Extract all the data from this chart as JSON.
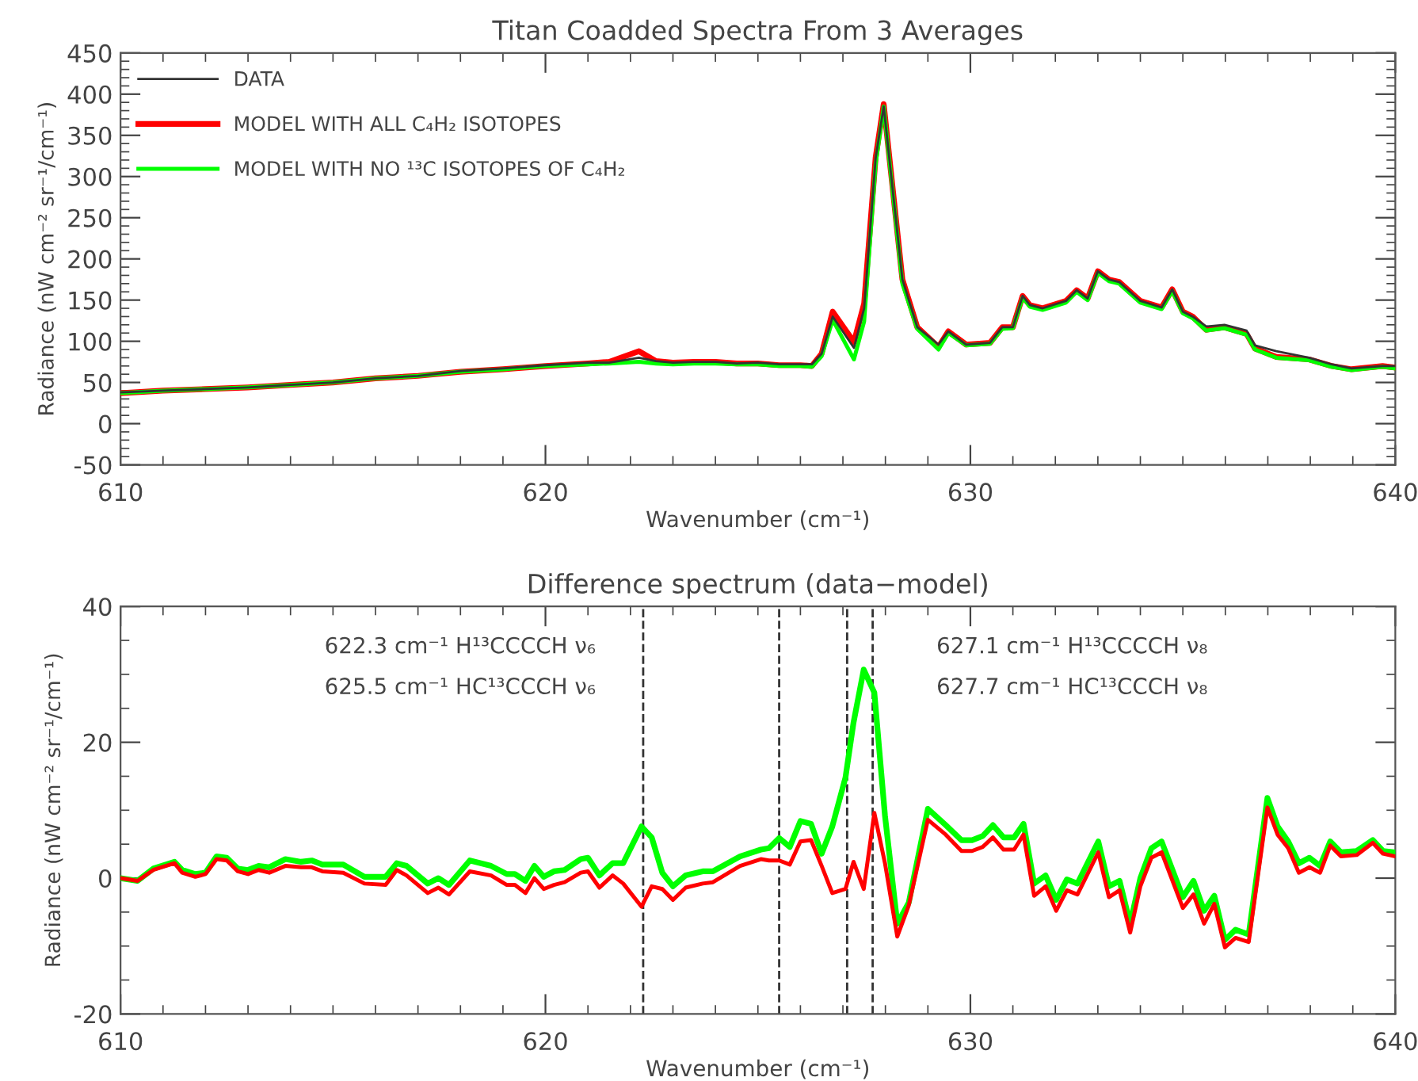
{
  "chart_data": [
    {
      "type": "line",
      "title": "Titan Coadded Spectra From 3 Averages",
      "xlabel": "Wavenumber (cm⁻¹)",
      "ylabel": "Radiance (nW cm⁻² sr⁻¹/cm⁻¹)",
      "x": [
        610,
        611,
        612,
        613,
        614,
        615,
        616,
        617,
        618,
        619,
        620,
        621,
        621.5,
        622.2,
        622.6,
        623,
        623.5,
        624,
        624.5,
        625,
        625.5,
        626,
        626.27,
        626.5,
        626.76,
        627.26,
        627.5,
        627.77,
        627.96,
        628.4,
        628.75,
        629.25,
        629.48,
        629.9,
        630.46,
        630.75,
        631.0,
        631.23,
        631.4,
        631.7,
        632.25,
        632.5,
        632.76,
        633.0,
        633.26,
        633.5,
        634.0,
        634.5,
        634.75,
        635.0,
        635.23,
        635.55,
        635.98,
        636.5,
        636.7,
        637.2,
        637.97,
        638.5,
        638.97,
        639.7,
        640
      ],
      "series": [
        {
          "name": "DATA",
          "color": "#333333",
          "values": [
            38,
            40,
            42,
            44,
            47,
            50,
            55,
            58,
            64,
            67,
            71,
            74,
            74,
            80,
            76,
            74,
            75,
            75,
            73,
            74,
            72,
            72,
            72,
            85,
            130,
            92,
            140,
            322,
            385,
            175,
            117,
            96,
            112,
            96,
            98,
            117,
            117,
            155,
            144,
            140,
            149,
            162,
            152,
            185,
            175,
            172,
            149,
            141,
            163,
            136,
            130,
            118,
            120,
            113,
            95,
            88,
            80,
            72,
            67,
            70,
            70
          ]
        },
        {
          "name": "MODEL WITH ALL C₄H₂ ISOTOPES",
          "color": "#ff0000",
          "values": [
            37,
            40,
            42,
            44,
            47,
            50,
            55,
            58,
            63,
            66,
            70,
            73,
            75,
            88,
            76,
            74,
            75,
            75,
            73,
            73,
            71,
            71,
            70,
            85,
            136,
            99,
            146,
            323,
            388,
            175,
            117,
            93,
            112,
            96,
            98,
            117,
            117,
            155,
            144,
            140,
            149,
            162,
            152,
            185,
            175,
            172,
            149,
            141,
            163,
            136,
            130,
            114,
            117,
            109,
            91,
            81,
            78,
            70,
            66,
            70,
            68
          ]
        },
        {
          "name": "MODEL WITH NO ¹³C ISOTOPES OF C₄H₂",
          "color": "#00ff00",
          "values": [
            37,
            40,
            42,
            44,
            47,
            50,
            55,
            58,
            63,
            66,
            70,
            72,
            73,
            75,
            73,
            72,
            73,
            73,
            72,
            72,
            70,
            70,
            69,
            82,
            126,
            78,
            124,
            315,
            385,
            170,
            115,
            90,
            110,
            95,
            97,
            115,
            116,
            153,
            142,
            138,
            147,
            160,
            150,
            183,
            173,
            170,
            147,
            139,
            161,
            134,
            128,
            113,
            116,
            108,
            90,
            80,
            77,
            69,
            65,
            69,
            67
          ]
        }
      ],
      "xlim": [
        610,
        640
      ],
      "xticks": [
        610,
        620,
        630,
        640
      ],
      "ylim": [
        -50,
        450
      ],
      "yticks": [
        -50,
        0,
        50,
        100,
        150,
        200,
        250,
        300,
        350,
        400,
        450
      ],
      "grid": false,
      "legend": "top left",
      "line_style": "solid",
      "marker": "none"
    },
    {
      "type": "line",
      "title": "Difference spectrum (data−model)",
      "xlabel": "Wavenumber (cm⁻¹)",
      "ylabel": "Radiance (nW cm⁻² sr⁻¹/cm⁻¹)",
      "x": [
        610,
        610.4,
        610.77,
        611.27,
        611.45,
        611.76,
        612.0,
        612.26,
        612.5,
        612.76,
        613.0,
        613.25,
        613.5,
        613.88,
        614.25,
        614.5,
        614.75,
        615.24,
        615.74,
        616.24,
        616.5,
        616.73,
        617.23,
        617.48,
        617.73,
        618.22,
        618.72,
        619.09,
        619.28,
        619.53,
        619.74,
        619.96,
        620.2,
        620.45,
        620.83,
        621.0,
        621.27,
        621.58,
        621.83,
        622.26,
        622.5,
        622.75,
        623.0,
        623.3,
        623.7,
        623.94,
        624.58,
        625.07,
        625.26,
        625.5,
        625.75,
        626.0,
        626.25,
        626.5,
        626.75,
        627.06,
        627.25,
        627.49,
        627.74,
        627.99,
        628.28,
        628.55,
        629.0,
        629.42,
        629.79,
        630.04,
        630.29,
        630.53,
        630.78,
        631.03,
        631.25,
        631.5,
        631.77,
        632.02,
        632.27,
        632.52,
        633.01,
        633.26,
        633.51,
        633.76,
        634.0,
        634.26,
        634.5,
        635.0,
        635.25,
        635.5,
        635.74,
        635.99,
        636.24,
        636.55,
        636.99,
        637.23,
        637.48,
        637.73,
        637.98,
        638.23,
        638.47,
        638.72,
        639.09,
        639.47,
        639.71,
        640
      ],
      "series": [
        {
          "color": "#00ff00",
          "values": [
            0,
            -0.4,
            1.4,
            2.4,
            1.2,
            0.6,
            0.8,
            3.2,
            3,
            1.4,
            1.2,
            1.8,
            1.6,
            2.8,
            2.4,
            2.6,
            2,
            2,
            0.2,
            0.2,
            2.2,
            1.8,
            -0.8,
            0,
            -1,
            2.6,
            1.8,
            0.6,
            0.6,
            -0.4,
            1.8,
            0.2,
            1,
            1.2,
            2.8,
            3,
            0.4,
            2.2,
            2.2,
            7.6,
            6,
            0.8,
            -1.2,
            0.4,
            1,
            1,
            3.2,
            4.2,
            4.4,
            5.9,
            4.6,
            8.4,
            8,
            3.6,
            7.6,
            14.8,
            22.9,
            30.7,
            27.3,
            9.2,
            -6.7,
            -3.6,
            10.2,
            7.8,
            5.6,
            5.6,
            6.2,
            7.8,
            6,
            6,
            8,
            -0.8,
            0.4,
            -3.2,
            -0.2,
            -0.8,
            5.4,
            -1.2,
            -0.4,
            -6.7,
            0,
            4.4,
            5.4,
            -2.8,
            -0.4,
            -4.8,
            -2.6,
            -9.1,
            -7.6,
            -8.3,
            11.8,
            7.6,
            5.4,
            2.2,
            3,
            1.8,
            5.4,
            3.8,
            4,
            5.6,
            4,
            3.8
          ]
        },
        {
          "color": "#ff0000",
          "values": [
            0,
            -0.4,
            1.2,
            2.2,
            0.8,
            0.2,
            0.6,
            2.8,
            2.6,
            1,
            0.6,
            1.2,
            0.8,
            1.8,
            1.6,
            1.6,
            1,
            0.8,
            -0.8,
            -1,
            1.2,
            0.4,
            -2.2,
            -1.4,
            -2.4,
            1,
            0.4,
            -1,
            -1,
            -2.2,
            0,
            -1.6,
            -1,
            -0.6,
            0.8,
            1,
            -1.4,
            0.4,
            -0.8,
            -4.2,
            -1.2,
            -1.6,
            -3.2,
            -1.4,
            -0.8,
            -0.6,
            1.8,
            2.8,
            2.6,
            2.6,
            2,
            5.4,
            5.6,
            1.8,
            -2.2,
            -1.6,
            2.4,
            -1.6,
            9.6,
            2.2,
            -8.6,
            -4,
            8.6,
            6.4,
            4,
            4,
            4.6,
            6,
            4.2,
            4.2,
            6.4,
            -2.6,
            -1.2,
            -4.8,
            -1.8,
            -2.4,
            3.8,
            -2.8,
            -1.8,
            -8,
            -1.2,
            3,
            3.8,
            -4.4,
            -2.4,
            -6.7,
            -3.8,
            -10.2,
            -8.8,
            -9.4,
            10.4,
            6.4,
            4.4,
            0.8,
            1.6,
            0.8,
            4.8,
            3.2,
            3.4,
            5.2,
            3.6,
            3.2
          ]
        }
      ],
      "ref_lines": [
        {
          "axis": "x",
          "value": 622.3,
          "color": "#333333",
          "line_style": "dashed"
        },
        {
          "axis": "x",
          "value": 625.5,
          "color": "#333333",
          "line_style": "dashed"
        },
        {
          "axis": "x",
          "value": 627.1,
          "color": "#333333",
          "line_style": "dashed"
        },
        {
          "axis": "x",
          "value": 627.7,
          "color": "#333333",
          "line_style": "dashed"
        }
      ],
      "annotations": [
        "622.3 cm⁻¹ H¹³CCCCH ν₆",
        "625.5 cm⁻¹ HC¹³CCCH ν₆",
        "627.1 cm⁻¹ H¹³CCCCH ν₈",
        "627.7 cm⁻¹ HC¹³CCCH ν₈"
      ],
      "xlim": [
        610,
        640
      ],
      "xticks": [
        610,
        620,
        630,
        640
      ],
      "ylim": [
        -20,
        40
      ],
      "yticks": [
        -20,
        0,
        20,
        40
      ],
      "grid": false,
      "line_style": "solid",
      "marker": "none"
    }
  ]
}
